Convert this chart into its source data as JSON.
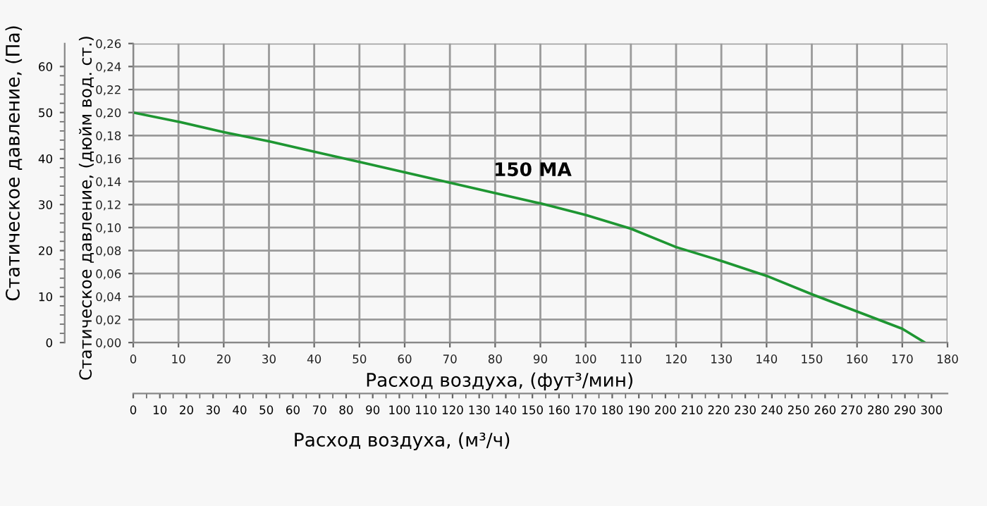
{
  "chart_data": {
    "type": "line",
    "x": [
      0,
      10,
      20,
      30,
      40,
      50,
      60,
      70,
      80,
      90,
      100,
      110,
      120,
      130,
      140,
      150,
      160,
      170,
      175
    ],
    "series": [
      {
        "name": "150 MA",
        "color": "#1e9632",
        "values": [
          0.2,
          0.192,
          0.183,
          0.175,
          0.166,
          0.157,
          0.148,
          0.139,
          0.13,
          0.121,
          0.111,
          0.099,
          0.083,
          0.071,
          0.058,
          0.042,
          0.027,
          0.012,
          0.0
        ]
      }
    ],
    "xlabel": "Расход воздуха, (фут³/мин)",
    "x2label": "Расход воздуха, (м³/ч)",
    "ylabel": "Статическое давление, (дюйм вод. ст.)",
    "y2label": "Статическое давление, (Па)",
    "xlim": [
      0,
      180
    ],
    "xticks": [
      0,
      10,
      20,
      30,
      40,
      50,
      60,
      70,
      80,
      90,
      100,
      110,
      120,
      130,
      140,
      150,
      160,
      170,
      180
    ],
    "x2lim": [
      0,
      306
    ],
    "x2ticks": [
      0,
      10,
      20,
      30,
      40,
      50,
      60,
      70,
      80,
      90,
      100,
      110,
      120,
      130,
      140,
      150,
      160,
      170,
      180,
      190,
      200,
      210,
      220,
      230,
      240,
      250,
      260,
      270,
      280,
      290,
      300
    ],
    "ylim": [
      0,
      0.26
    ],
    "yticks": [
      {
        "value": 0,
        "label": "0,00"
      },
      {
        "value": 0.02,
        "label": "0,02"
      },
      {
        "value": 0.04,
        "label": "0,04"
      },
      {
        "value": 0.06,
        "label": "0,06"
      },
      {
        "value": 0.08,
        "label": "0,08"
      },
      {
        "value": 0.1,
        "label": "0,10"
      },
      {
        "value": 0.12,
        "label": "0,12"
      },
      {
        "value": 0.14,
        "label": "0,14"
      },
      {
        "value": 0.16,
        "label": "0,16"
      },
      {
        "value": 0.18,
        "label": "0,18"
      },
      {
        "value": 0.2,
        "label": "0,20"
      },
      {
        "value": 0.22,
        "label": "0,22"
      },
      {
        "value": 0.24,
        "label": "0,24"
      },
      {
        "value": 0.26,
        "label": "0,26"
      }
    ],
    "y2lim": [
      0,
      65
    ],
    "y2ticks": [
      0,
      10,
      20,
      30,
      40,
      50,
      60
    ],
    "grid": true,
    "legend": false,
    "marker": "none",
    "line_style": "solid"
  }
}
